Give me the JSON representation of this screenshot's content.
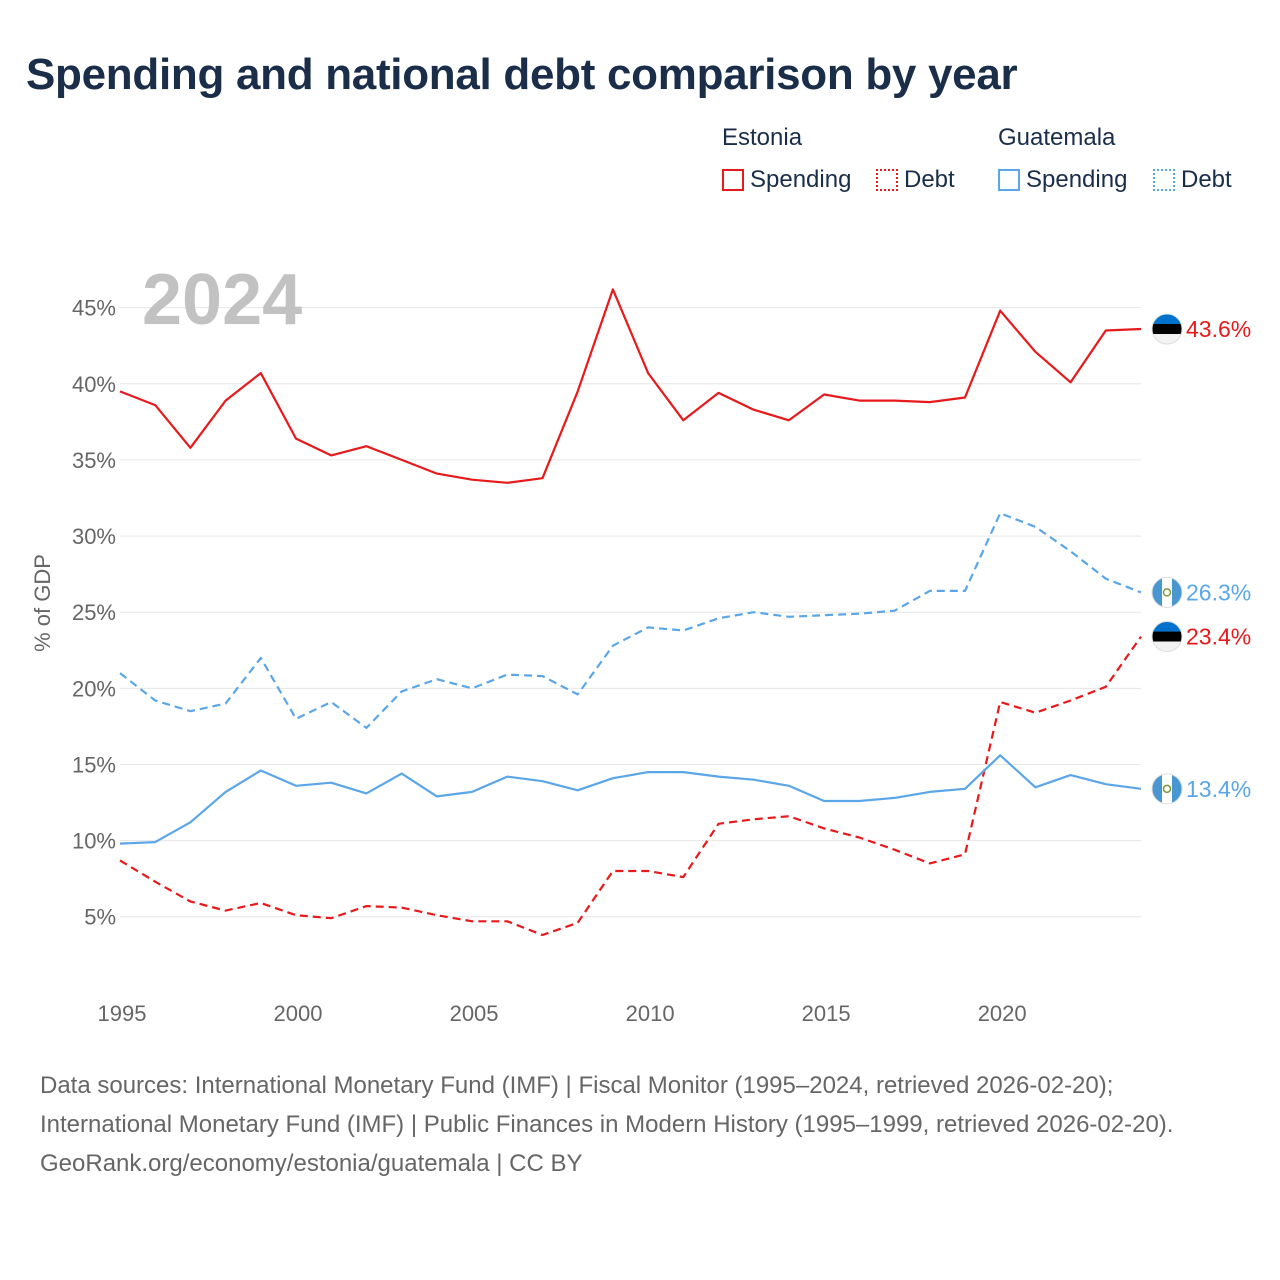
{
  "title": "Spending and national debt comparison by year",
  "legend": {
    "estonia": {
      "group": "Estonia",
      "spending": "Spending",
      "debt": "Debt"
    },
    "guatemala": {
      "group": "Guatemala",
      "spending": "Spending",
      "debt": "Debt"
    }
  },
  "year_watermark": "2024",
  "colors": {
    "estonia": "#e8191b",
    "guatemala": "#5aa6e8",
    "text": "#1a2e4a",
    "muted": "#c2c2c2"
  },
  "chart_data": {
    "type": "line",
    "title": "Spending and national debt comparison by year",
    "ylabel": "% of GDP",
    "xlabel": "",
    "x": [
      1995,
      1996,
      1997,
      1998,
      1999,
      2000,
      2001,
      2002,
      2003,
      2004,
      2005,
      2006,
      2007,
      2008,
      2009,
      2010,
      2011,
      2012,
      2013,
      2014,
      2015,
      2016,
      2017,
      2018,
      2019,
      2020,
      2021,
      2022,
      2023,
      2024
    ],
    "xlim": [
      1995,
      2024
    ],
    "ylim": [
      1.5,
      48
    ],
    "x_ticks": [
      1995,
      2000,
      2005,
      2010,
      2015,
      2020
    ],
    "y_ticks": [
      5,
      10,
      15,
      20,
      25,
      30,
      35,
      40,
      45
    ],
    "y_tick_labels": [
      "5%",
      "10%",
      "15%",
      "20%",
      "25%",
      "30%",
      "35%",
      "40%",
      "45%"
    ],
    "grid": true,
    "legend_position": "top-right",
    "series": [
      {
        "name": "Estonia Spending",
        "country": "estonia",
        "style": "solid",
        "values": [
          39.5,
          38.6,
          35.8,
          38.9,
          40.7,
          36.4,
          35.3,
          35.9,
          35.0,
          34.1,
          33.7,
          33.5,
          33.8,
          39.5,
          46.2,
          40.7,
          37.6,
          39.4,
          38.3,
          37.6,
          39.3,
          38.9,
          38.9,
          38.8,
          39.1,
          44.8,
          42.1,
          40.1,
          43.5,
          43.6
        ],
        "end_label": "43.6%"
      },
      {
        "name": "Guatemala Debt",
        "country": "guatemala",
        "style": "dashed",
        "values": [
          21.0,
          19.2,
          18.5,
          19.0,
          22.0,
          18.0,
          19.1,
          17.4,
          19.8,
          20.6,
          20.0,
          20.9,
          20.8,
          19.6,
          22.8,
          24.0,
          23.8,
          24.6,
          25.0,
          24.7,
          24.8,
          24.9,
          25.1,
          26.4,
          26.4,
          31.5,
          30.6,
          29.0,
          27.2,
          26.3
        ],
        "end_label": "26.3%"
      },
      {
        "name": "Estonia Debt",
        "country": "estonia",
        "style": "dashed",
        "values": [
          8.7,
          7.3,
          6.0,
          5.4,
          5.9,
          5.1,
          4.9,
          5.7,
          5.6,
          5.1,
          4.7,
          4.7,
          3.8,
          4.6,
          8.0,
          8.0,
          7.6,
          11.1,
          11.4,
          11.6,
          10.8,
          10.2,
          9.4,
          8.5,
          9.1,
          19.1,
          18.4,
          19.2,
          20.1,
          23.4
        ],
        "end_label": "23.4%"
      },
      {
        "name": "Guatemala Spending",
        "country": "guatemala",
        "style": "solid",
        "values": [
          9.8,
          9.9,
          11.2,
          13.2,
          14.6,
          13.6,
          13.8,
          13.1,
          14.4,
          12.9,
          13.2,
          14.2,
          13.9,
          13.3,
          14.1,
          14.5,
          14.5,
          14.2,
          14.0,
          13.6,
          12.6,
          12.6,
          12.8,
          13.2,
          13.4,
          15.6,
          13.5,
          14.3,
          13.7,
          13.4
        ],
        "end_label": "13.4%"
      }
    ]
  },
  "footer": {
    "sources": "Data sources: International Monetary Fund (IMF) | Fiscal Monitor (1995–2024, retrieved 2026-02-20); International Monetary Fund (IMF) | Public Finances in Modern History (1995–1999, retrieved 2026-02-20).",
    "credit": "GeoRank.org/economy/estonia/guatemala | CC BY"
  }
}
